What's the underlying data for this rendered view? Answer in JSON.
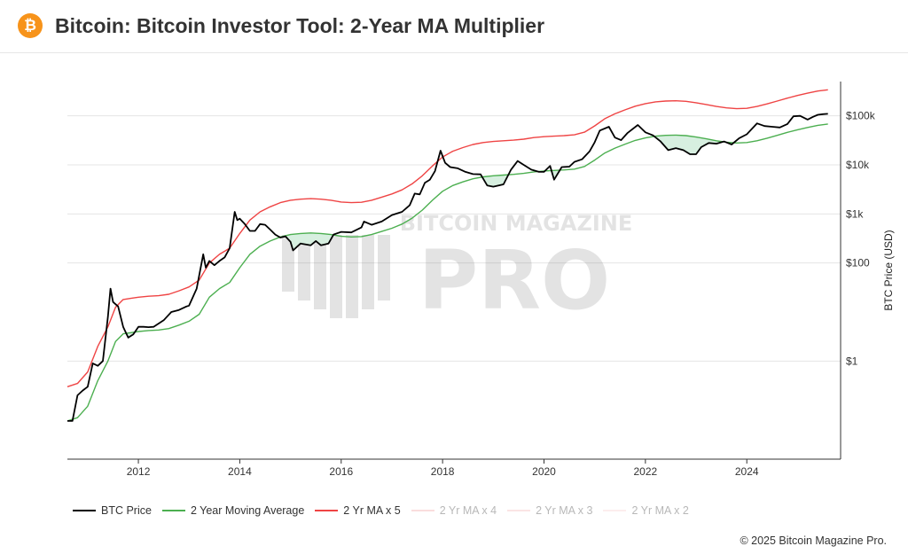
{
  "header": {
    "title": "Bitcoin: Bitcoin Investor Tool: 2-Year MA Multiplier",
    "logo_icon": "bitcoin-icon",
    "logo_glyph": "₿",
    "logo_color": "#f7931a"
  },
  "watermark": {
    "top_text": "BITCOIN MAGAZINE",
    "main_text": "PRO"
  },
  "footer": {
    "copyright": "© 2025 Bitcoin Magazine Pro."
  },
  "colors": {
    "price": "#000000",
    "ma2y": "#4caf50",
    "ma2y_x5": "#ef4444",
    "ma2y_x4": "#f3a0a0",
    "ma2y_x3": "#f5b5b5",
    "ma2y_x2": "#f8cccc",
    "fill_between": "#d7efe0"
  },
  "chart_data": {
    "type": "line",
    "title": "Bitcoin: Bitcoin Investor Tool: 2-Year MA Multiplier",
    "xlabel": "",
    "ylabel": "BTC Price (USD)",
    "y_scale": "log",
    "ylim": [
      0.01,
      500000
    ],
    "xlim": [
      2010.6,
      2025.85
    ],
    "x_ticks": [
      "2012",
      "2014",
      "2016",
      "2018",
      "2020",
      "2022",
      "2024"
    ],
    "y_ticks": [
      {
        "value": 1,
        "label": "$1"
      },
      {
        "value": 100,
        "label": "$100"
      },
      {
        "value": 1000,
        "label": "$1k"
      },
      {
        "value": 10000,
        "label": "$10k"
      },
      {
        "value": 100000,
        "label": "$100k"
      }
    ],
    "grid": "horizontal",
    "legend_position": "bottom-left",
    "series": [
      {
        "name": "BTC Price",
        "key": "price",
        "visible": true,
        "points": [
          [
            2010.6,
            0.06
          ],
          [
            2010.7,
            0.06
          ],
          [
            2010.8,
            0.2
          ],
          [
            2010.9,
            0.25
          ],
          [
            2011.0,
            0.3
          ],
          [
            2011.1,
            0.9
          ],
          [
            2011.2,
            0.8
          ],
          [
            2011.3,
            1.0
          ],
          [
            2011.4,
            8
          ],
          [
            2011.45,
            30
          ],
          [
            2011.5,
            16
          ],
          [
            2011.6,
            13
          ],
          [
            2011.7,
            5
          ],
          [
            2011.8,
            3.0
          ],
          [
            2011.9,
            3.5
          ],
          [
            2012.0,
            5
          ],
          [
            2012.1,
            5
          ],
          [
            2012.2,
            4.9
          ],
          [
            2012.3,
            5
          ],
          [
            2012.5,
            6.8
          ],
          [
            2012.65,
            10
          ],
          [
            2012.8,
            11
          ],
          [
            2012.95,
            13
          ],
          [
            2013.0,
            13.5
          ],
          [
            2013.15,
            30
          ],
          [
            2013.28,
            150
          ],
          [
            2013.33,
            80
          ],
          [
            2013.4,
            110
          ],
          [
            2013.5,
            90
          ],
          [
            2013.6,
            110
          ],
          [
            2013.7,
            130
          ],
          [
            2013.8,
            200
          ],
          [
            2013.9,
            1100
          ],
          [
            2013.95,
            750
          ],
          [
            2014.0,
            800
          ],
          [
            2014.1,
            620
          ],
          [
            2014.2,
            450
          ],
          [
            2014.3,
            450
          ],
          [
            2014.4,
            620
          ],
          [
            2014.5,
            600
          ],
          [
            2014.6,
            480
          ],
          [
            2014.7,
            380
          ],
          [
            2014.8,
            330
          ],
          [
            2014.9,
            350
          ],
          [
            2015.0,
            270
          ],
          [
            2015.05,
            180
          ],
          [
            2015.2,
            250
          ],
          [
            2015.4,
            230
          ],
          [
            2015.5,
            280
          ],
          [
            2015.6,
            230
          ],
          [
            2015.75,
            250
          ],
          [
            2015.85,
            380
          ],
          [
            2016.0,
            430
          ],
          [
            2016.2,
            420
          ],
          [
            2016.4,
            530
          ],
          [
            2016.45,
            700
          ],
          [
            2016.6,
            600
          ],
          [
            2016.8,
            700
          ],
          [
            2017.0,
            950
          ],
          [
            2017.2,
            1100
          ],
          [
            2017.35,
            1500
          ],
          [
            2017.45,
            2600
          ],
          [
            2017.55,
            2500
          ],
          [
            2017.65,
            4300
          ],
          [
            2017.75,
            5000
          ],
          [
            2017.85,
            7500
          ],
          [
            2017.96,
            19500
          ],
          [
            2018.05,
            11000
          ],
          [
            2018.15,
            9000
          ],
          [
            2018.3,
            8500
          ],
          [
            2018.45,
            7200
          ],
          [
            2018.6,
            6500
          ],
          [
            2018.75,
            6400
          ],
          [
            2018.88,
            3800
          ],
          [
            2019.0,
            3600
          ],
          [
            2019.2,
            4000
          ],
          [
            2019.35,
            8000
          ],
          [
            2019.48,
            12000
          ],
          [
            2019.6,
            10000
          ],
          [
            2019.75,
            8000
          ],
          [
            2019.9,
            7200
          ],
          [
            2020.0,
            7200
          ],
          [
            2020.12,
            9500
          ],
          [
            2020.2,
            5000
          ],
          [
            2020.35,
            9000
          ],
          [
            2020.5,
            9200
          ],
          [
            2020.6,
            11500
          ],
          [
            2020.75,
            13000
          ],
          [
            2020.9,
            19000
          ],
          [
            2021.0,
            29000
          ],
          [
            2021.1,
            50000
          ],
          [
            2021.28,
            60000
          ],
          [
            2021.4,
            36000
          ],
          [
            2021.52,
            32000
          ],
          [
            2021.65,
            45000
          ],
          [
            2021.85,
            65000
          ],
          [
            2022.0,
            46000
          ],
          [
            2022.15,
            40000
          ],
          [
            2022.3,
            30000
          ],
          [
            2022.45,
            20000
          ],
          [
            2022.6,
            22000
          ],
          [
            2022.75,
            20000
          ],
          [
            2022.88,
            16500
          ],
          [
            2023.0,
            16500
          ],
          [
            2023.1,
            23000
          ],
          [
            2023.25,
            28000
          ],
          [
            2023.4,
            27000
          ],
          [
            2023.55,
            30000
          ],
          [
            2023.7,
            26000
          ],
          [
            2023.85,
            35000
          ],
          [
            2024.0,
            42000
          ],
          [
            2024.2,
            70000
          ],
          [
            2024.35,
            62000
          ],
          [
            2024.5,
            60000
          ],
          [
            2024.65,
            58000
          ],
          [
            2024.8,
            68000
          ],
          [
            2024.92,
            98000
          ],
          [
            2025.05,
            100000
          ],
          [
            2025.2,
            84000
          ],
          [
            2025.3,
            95000
          ],
          [
            2025.4,
            105000
          ],
          [
            2025.5,
            108000
          ],
          [
            2025.6,
            110000
          ]
        ]
      },
      {
        "name": "2 Year Moving Average",
        "key": "ma2y",
        "visible": true,
        "points": [
          [
            2010.6,
            0.06
          ],
          [
            2010.8,
            0.07
          ],
          [
            2011.0,
            0.12
          ],
          [
            2011.2,
            0.4
          ],
          [
            2011.4,
            1.0
          ],
          [
            2011.55,
            2.5
          ],
          [
            2011.7,
            3.6
          ],
          [
            2011.85,
            3.8
          ],
          [
            2012.0,
            4.0
          ],
          [
            2012.2,
            4.2
          ],
          [
            2012.4,
            4.3
          ],
          [
            2012.6,
            4.6
          ],
          [
            2012.8,
            5.4
          ],
          [
            2013.0,
            6.5
          ],
          [
            2013.2,
            9
          ],
          [
            2013.4,
            20
          ],
          [
            2013.6,
            30
          ],
          [
            2013.8,
            40
          ],
          [
            2014.0,
            80
          ],
          [
            2014.2,
            150
          ],
          [
            2014.4,
            220
          ],
          [
            2014.6,
            280
          ],
          [
            2014.8,
            340
          ],
          [
            2015.0,
            380
          ],
          [
            2015.2,
            400
          ],
          [
            2015.4,
            410
          ],
          [
            2015.6,
            400
          ],
          [
            2015.8,
            380
          ],
          [
            2016.0,
            350
          ],
          [
            2016.2,
            340
          ],
          [
            2016.4,
            345
          ],
          [
            2016.6,
            380
          ],
          [
            2016.8,
            440
          ],
          [
            2017.0,
            510
          ],
          [
            2017.2,
            620
          ],
          [
            2017.4,
            820
          ],
          [
            2017.6,
            1200
          ],
          [
            2017.8,
            1900
          ],
          [
            2018.0,
            2900
          ],
          [
            2018.2,
            3800
          ],
          [
            2018.4,
            4500
          ],
          [
            2018.6,
            5200
          ],
          [
            2018.8,
            5700
          ],
          [
            2019.0,
            6000
          ],
          [
            2019.2,
            6200
          ],
          [
            2019.4,
            6400
          ],
          [
            2019.6,
            6700
          ],
          [
            2019.8,
            7200
          ],
          [
            2020.0,
            7500
          ],
          [
            2020.2,
            7700
          ],
          [
            2020.4,
            7900
          ],
          [
            2020.6,
            8200
          ],
          [
            2020.8,
            9300
          ],
          [
            2021.0,
            12500
          ],
          [
            2021.2,
            17500
          ],
          [
            2021.4,
            22000
          ],
          [
            2021.6,
            26500
          ],
          [
            2021.8,
            31500
          ],
          [
            2022.0,
            35500
          ],
          [
            2022.2,
            38500
          ],
          [
            2022.4,
            40000
          ],
          [
            2022.6,
            40500
          ],
          [
            2022.8,
            39500
          ],
          [
            2023.0,
            37000
          ],
          [
            2023.2,
            34000
          ],
          [
            2023.4,
            31000
          ],
          [
            2023.6,
            29000
          ],
          [
            2023.8,
            28000
          ],
          [
            2024.0,
            28500
          ],
          [
            2024.2,
            31000
          ],
          [
            2024.4,
            35000
          ],
          [
            2024.6,
            40000
          ],
          [
            2024.8,
            46000
          ],
          [
            2025.0,
            52000
          ],
          [
            2025.2,
            58000
          ],
          [
            2025.4,
            64000
          ],
          [
            2025.6,
            68000
          ]
        ]
      },
      {
        "name": "2 Yr MA x 5",
        "key": "ma2y_x5",
        "visible": true,
        "points": [
          [
            2010.6,
            0.3
          ],
          [
            2010.8,
            0.35
          ],
          [
            2011.0,
            0.6
          ],
          [
            2011.2,
            2.0
          ],
          [
            2011.4,
            5.0
          ],
          [
            2011.55,
            12.5
          ],
          [
            2011.7,
            18
          ],
          [
            2011.85,
            19
          ],
          [
            2012.0,
            20
          ],
          [
            2012.2,
            21
          ],
          [
            2012.4,
            21.5
          ],
          [
            2012.6,
            23
          ],
          [
            2012.8,
            27
          ],
          [
            2013.0,
            32.5
          ],
          [
            2013.2,
            45
          ],
          [
            2013.4,
            100
          ],
          [
            2013.6,
            150
          ],
          [
            2013.8,
            200
          ],
          [
            2014.0,
            400
          ],
          [
            2014.2,
            750
          ],
          [
            2014.4,
            1100
          ],
          [
            2014.6,
            1400
          ],
          [
            2014.8,
            1700
          ],
          [
            2015.0,
            1900
          ],
          [
            2015.2,
            2000
          ],
          [
            2015.4,
            2050
          ],
          [
            2015.6,
            2000
          ],
          [
            2015.8,
            1900
          ],
          [
            2016.0,
            1750
          ],
          [
            2016.2,
            1700
          ],
          [
            2016.4,
            1725
          ],
          [
            2016.6,
            1900
          ],
          [
            2016.8,
            2200
          ],
          [
            2017.0,
            2550
          ],
          [
            2017.2,
            3100
          ],
          [
            2017.4,
            4100
          ],
          [
            2017.6,
            6000
          ],
          [
            2017.8,
            9500
          ],
          [
            2018.0,
            14500
          ],
          [
            2018.2,
            19000
          ],
          [
            2018.4,
            22500
          ],
          [
            2018.6,
            26000
          ],
          [
            2018.8,
            28500
          ],
          [
            2019.0,
            30000
          ],
          [
            2019.2,
            31000
          ],
          [
            2019.4,
            32000
          ],
          [
            2019.6,
            33500
          ],
          [
            2019.8,
            36000
          ],
          [
            2020.0,
            37500
          ],
          [
            2020.2,
            38500
          ],
          [
            2020.4,
            39500
          ],
          [
            2020.6,
            41000
          ],
          [
            2020.8,
            46500
          ],
          [
            2021.0,
            62500
          ],
          [
            2021.2,
            87500
          ],
          [
            2021.4,
            110000
          ],
          [
            2021.6,
            132500
          ],
          [
            2021.8,
            157500
          ],
          [
            2022.0,
            177500
          ],
          [
            2022.2,
            192500
          ],
          [
            2022.4,
            200000
          ],
          [
            2022.6,
            202500
          ],
          [
            2022.8,
            197500
          ],
          [
            2023.0,
            185000
          ],
          [
            2023.2,
            170000
          ],
          [
            2023.4,
            155000
          ],
          [
            2023.6,
            145000
          ],
          [
            2023.8,
            140000
          ],
          [
            2024.0,
            142500
          ],
          [
            2024.2,
            155000
          ],
          [
            2024.4,
            175000
          ],
          [
            2024.6,
            200000
          ],
          [
            2024.8,
            230000
          ],
          [
            2025.0,
            260000
          ],
          [
            2025.2,
            290000
          ],
          [
            2025.4,
            320000
          ],
          [
            2025.6,
            340000
          ]
        ]
      },
      {
        "name": "2 Yr MA x 4",
        "key": "ma2y_x4",
        "visible": false,
        "points": []
      },
      {
        "name": "2 Yr MA x 3",
        "key": "ma2y_x3",
        "visible": false,
        "points": []
      },
      {
        "name": "2 Yr MA x 2",
        "key": "ma2y_x2",
        "visible": false,
        "points": []
      }
    ]
  }
}
